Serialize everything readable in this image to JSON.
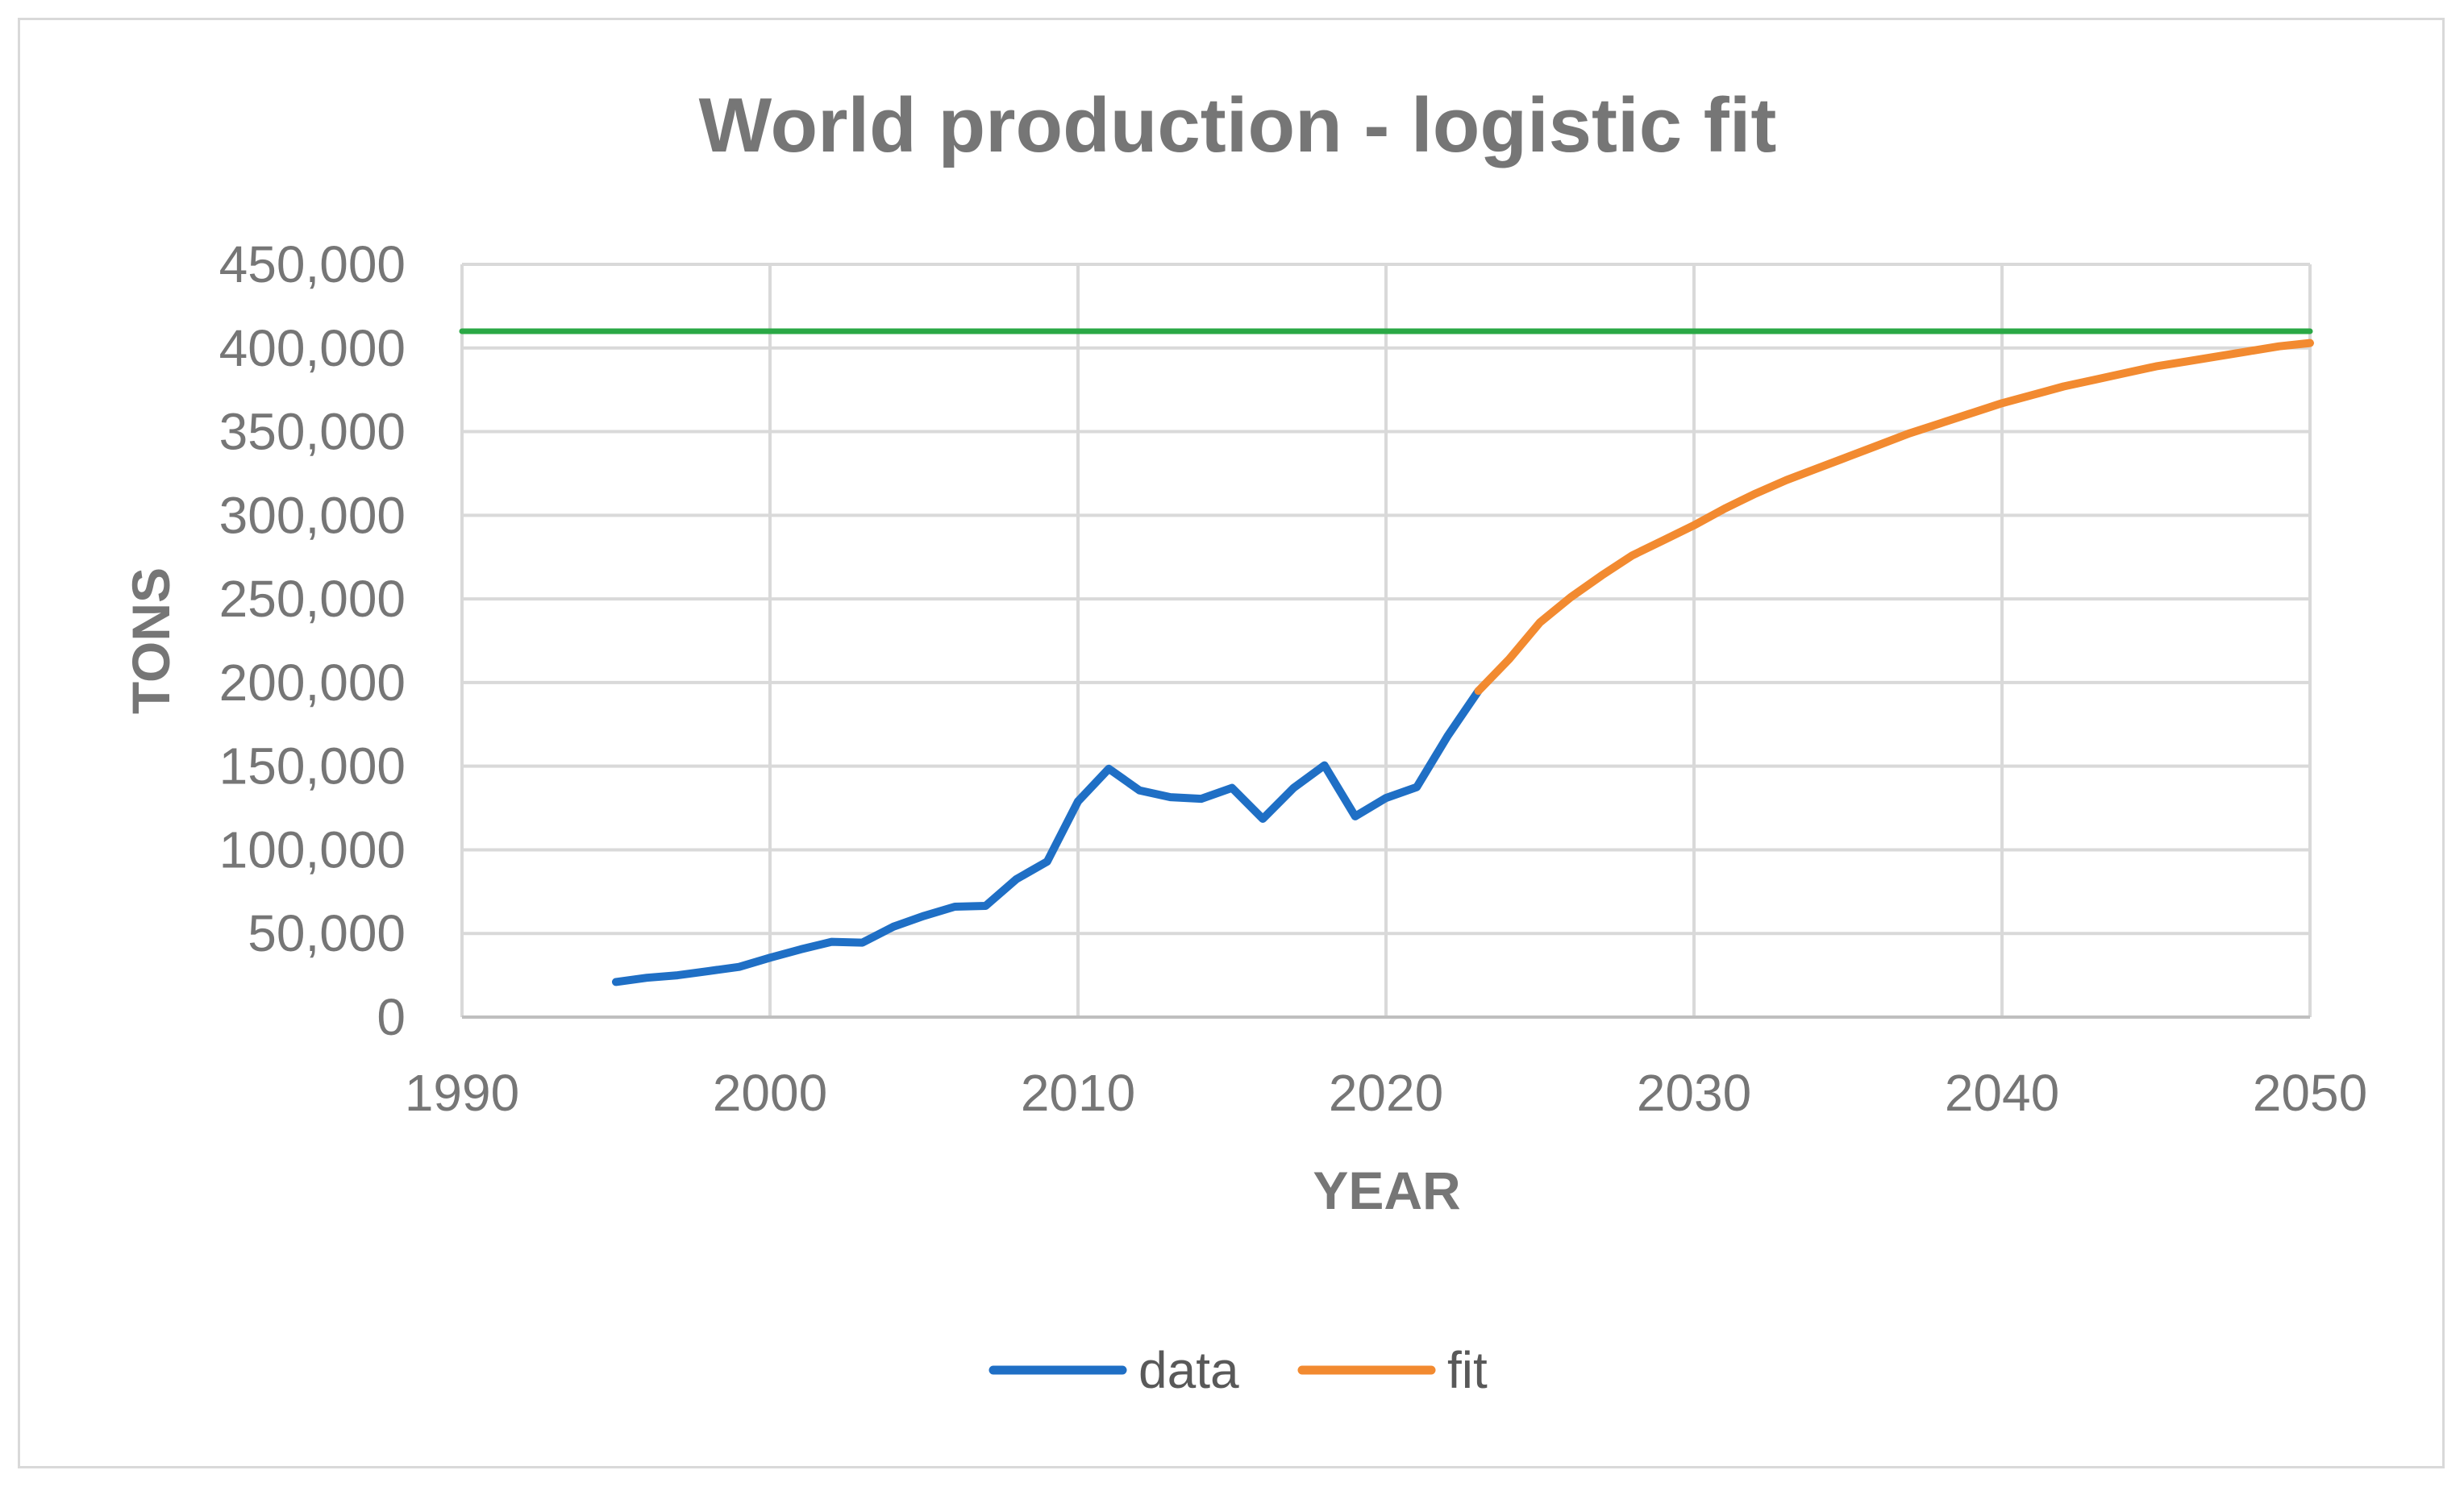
{
  "chart_data": {
    "type": "line",
    "title": "World production - logistic fit",
    "xlabel": "YEAR",
    "ylabel": "TONS",
    "xlim": [
      1990,
      2050
    ],
    "ylim": [
      0,
      450000
    ],
    "x_ticks": [
      1990,
      2000,
      2010,
      2020,
      2030,
      2040,
      2050
    ],
    "y_ticks": [
      0,
      50000,
      100000,
      150000,
      200000,
      250000,
      300000,
      350000,
      400000,
      450000
    ],
    "x_tick_labels": [
      "1990",
      "2000",
      "2010",
      "2020",
      "2030",
      "2040",
      "2050"
    ],
    "y_tick_labels": [
      "0",
      "50,000",
      "100,000",
      "150,000",
      "200,000",
      "250,000",
      "300,000",
      "350,000",
      "400,000",
      "450,000"
    ],
    "grid": true,
    "legend_position": "bottom",
    "series": [
      {
        "name": "data",
        "color": "#1f6fc5",
        "x": [
          1995,
          1996,
          1997,
          1998,
          1999,
          2000,
          2001,
          2002,
          2003,
          2004,
          2005,
          2006,
          2007,
          2008,
          2009,
          2010,
          2011,
          2012,
          2013,
          2014,
          2015,
          2016,
          2017,
          2018,
          2019,
          2020,
          2021,
          2022,
          2023
        ],
        "y": [
          21000,
          23500,
          25000,
          27500,
          30000,
          35500,
          40500,
          45000,
          44500,
          54000,
          60500,
          66000,
          66500,
          82500,
          93000,
          129000,
          148500,
          135500,
          131500,
          130500,
          137000,
          118500,
          137000,
          150500,
          120000,
          131000,
          137500,
          168000,
          195000
        ]
      },
      {
        "name": "fit",
        "color": "#f28a30",
        "x": [
          2023,
          2024,
          2025,
          2026,
          2027,
          2028,
          2029,
          2030,
          2031,
          2032,
          2033,
          2034,
          2035,
          2036,
          2037,
          2038,
          2039,
          2040,
          2041,
          2042,
          2043,
          2044,
          2045,
          2046,
          2047,
          2048,
          2049,
          2050
        ],
        "y": [
          195000,
          214000,
          236000,
          251000,
          264000,
          276000,
          285000,
          294000,
          304000,
          313000,
          321000,
          328000,
          335000,
          342000,
          349000,
          355000,
          361000,
          367000,
          372000,
          377000,
          381000,
          385000,
          389000,
          392000,
          395000,
          398000,
          401000,
          403000
        ]
      },
      {
        "color": "#2aa845",
        "x": [
          1990,
          2050
        ],
        "y": [
          410000,
          410000
        ]
      }
    ]
  }
}
